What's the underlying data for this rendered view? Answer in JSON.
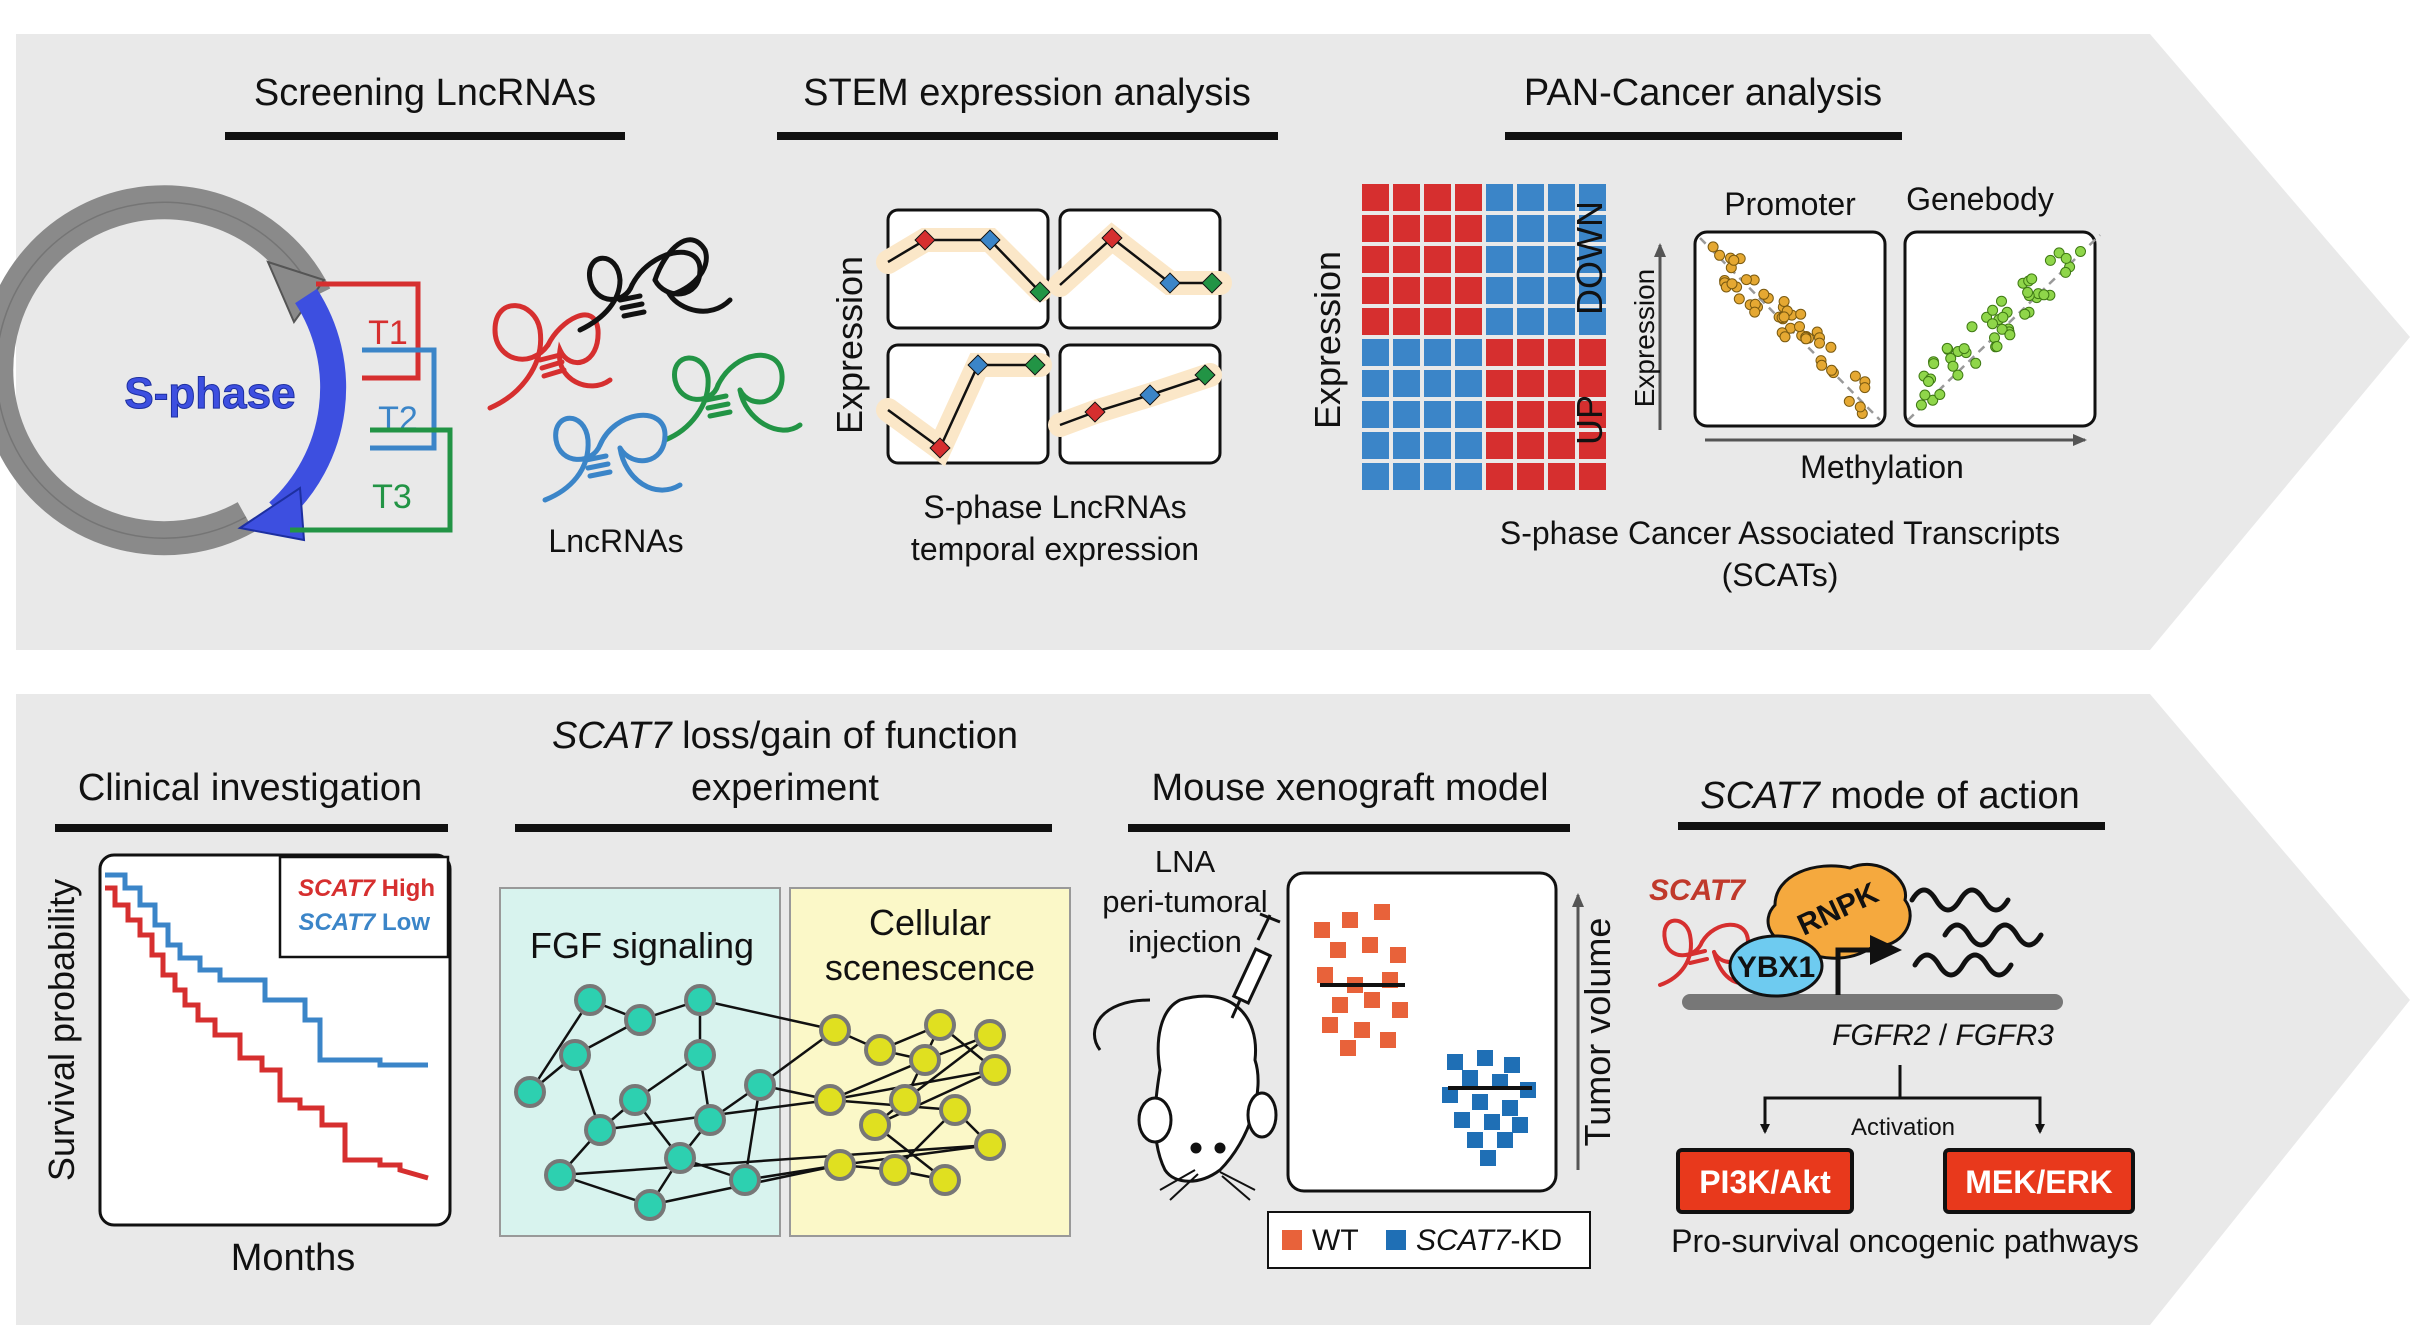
{
  "top_panel": {
    "section_titles": {
      "screening": "Screening LncRNAs",
      "stem": "STEM expression analysis",
      "pancancer": "PAN-Cancer analysis"
    },
    "cycle": {
      "label": "S-phase",
      "t1": "T1",
      "t2": "T2",
      "t3": "T3"
    },
    "lncrnas_label": "LncRNAs",
    "stem": {
      "y_label": "Expression",
      "caption_line1": "S-phase LncRNAs",
      "caption_line2": "temporal expression"
    },
    "heatmap": {
      "y_label": "Expression",
      "down_label": "DOWN",
      "up_label": "UP"
    },
    "methylation": {
      "promoter_title": "Promoter",
      "genebody_title": "Genebody",
      "y_label": "Expression",
      "x_label": "Methylation"
    },
    "scats_caption_line1": "S-phase Cancer Associated Transcripts",
    "scats_caption_line2": "(SCATs)"
  },
  "bottom_panel": {
    "section_titles": {
      "clinical": "Clinical investigation",
      "function_line1_italic": "SCAT7",
      "function_line1_rest": " loss/gain of function",
      "function_line2": "experiment",
      "mouse": "Mouse xenograft model",
      "mode_italic": "SCAT7",
      "mode_rest": " mode of action"
    },
    "survival": {
      "y_label": "Survival probability",
      "x_label": "Months",
      "legend_high_italic": "SCAT7",
      "legend_high_rest": " High",
      "legend_low_italic": "SCAT7",
      "legend_low_rest": " Low"
    },
    "network": {
      "fgf_label": "FGF signaling",
      "senescence_line1": "Cellular",
      "senescence_line2": "scenescence"
    },
    "mouse": {
      "injection_line1": "LNA",
      "injection_line2": "peri-tumoral",
      "injection_line3": "injection",
      "y_label": "Tumor volume",
      "legend_wt": "WT",
      "legend_kd_italic": "SCAT7",
      "legend_kd_rest": "-KD"
    },
    "mode": {
      "scat7_label": "SCAT7",
      "rnpk_label": "RNPK",
      "ybx1_label": "YBX1",
      "genes_a": "FGFR2",
      "genes_sep": " / ",
      "genes_b": "FGFR3",
      "activation_label": "Activation",
      "pathway_left": "PI3K/Akt",
      "pathway_right": "MEK/ERK",
      "pathways_caption": "Pro-survival oncogenic pathways"
    }
  },
  "colors": {
    "panel_bg": "#e9e9e9",
    "red": "#d62f2f",
    "blue": "#3b85c8",
    "green": "#229445",
    "cycle_blue": "#3d4fe0",
    "pathway_red": "#e8391c",
    "rnpk_orange": "#f5a93e",
    "ybx1_blue": "#6ecbf0"
  }
}
